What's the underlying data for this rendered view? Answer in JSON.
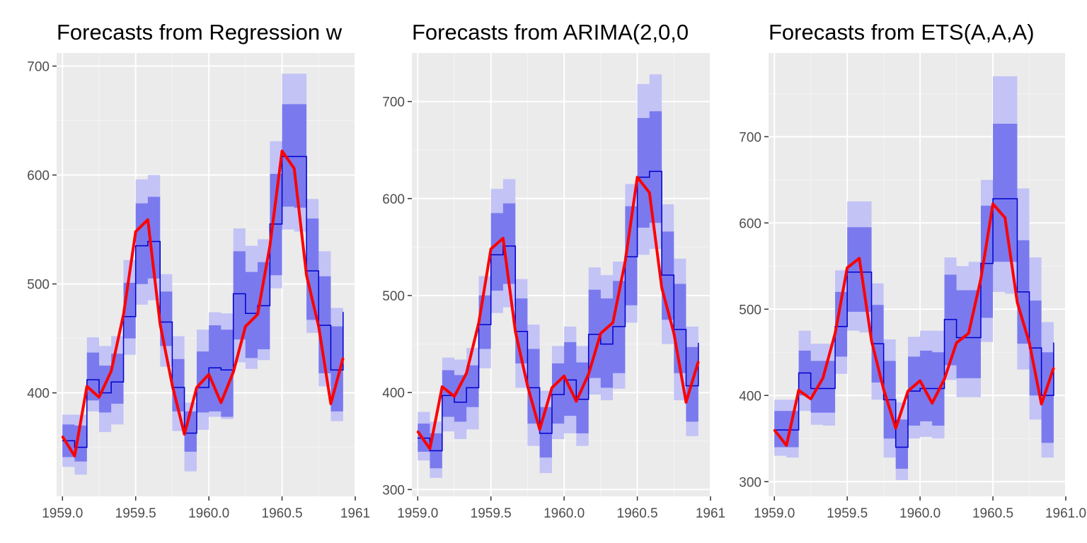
{
  "figure": {
    "colors": {
      "panel_background": "#ebebeb",
      "grid_major": "#ffffff",
      "grid_minor": "#f4f4f4",
      "band_80": "#7a7aee",
      "band_95": "#c3c3f6",
      "forecast_line": "#0000cc",
      "actual_line": "#ff0000",
      "tick_text": "#4d4d4d",
      "tick_mark": "#333333"
    }
  },
  "chart_data": [
    {
      "type": "line",
      "title": "Forecasts from Regression w",
      "xlabel": "",
      "ylabel": "",
      "xlim": [
        1958.96,
        1961.0
      ],
      "ylim": [
        305,
        712
      ],
      "x_ticks": [
        1959.0,
        1959.5,
        1960.0,
        1960.5,
        1961.0
      ],
      "x_tick_labels": [
        "1959.0",
        "1959.5",
        "1960.0",
        "1960.5",
        "1961"
      ],
      "y_ticks": [
        400,
        500,
        600,
        700
      ],
      "y_tick_labels": [
        "400",
        "500",
        "600",
        "700"
      ],
      "grid": true,
      "x": [
        1959.0,
        1959.083,
        1959.167,
        1959.25,
        1959.333,
        1959.417,
        1959.5,
        1959.583,
        1959.667,
        1959.75,
        1959.833,
        1959.917,
        1960.0,
        1960.083,
        1960.167,
        1960.25,
        1960.333,
        1960.417,
        1960.5,
        1960.583,
        1960.667,
        1960.75,
        1960.833,
        1960.917
      ],
      "series": [
        {
          "name": "forecast",
          "values": [
            356,
            350,
            412,
            400,
            410,
            470,
            535,
            539,
            465,
            405,
            363,
            405,
            423,
            421,
            491,
            473,
            480,
            555,
            617,
            617,
            512,
            462,
            421,
            474
          ],
          "lo80": [
            341,
            337,
            393,
            382,
            390,
            450,
            500,
            505,
            443,
            383,
            346,
            382,
            383,
            378,
            449,
            432,
            440,
            508,
            571,
            570,
            467,
            418,
            383,
            437
          ],
          "hi80": [
            371,
            370,
            437,
            425,
            436,
            501,
            574,
            580,
            493,
            431,
            383,
            438,
            462,
            458,
            530,
            511,
            520,
            601,
            665,
            665,
            560,
            507,
            461,
            511
          ],
          "lo95": [
            332,
            325,
            383,
            364,
            371,
            435,
            481,
            485,
            424,
            365,
            328,
            366,
            378,
            376,
            428,
            422,
            430,
            496,
            550,
            548,
            455,
            406,
            374,
            414
          ],
          "hi95": [
            380,
            380,
            451,
            443,
            452,
            522,
            596,
            600,
            509,
            452,
            391,
            458,
            474,
            473,
            551,
            535,
            541,
            631,
            693,
            693,
            578,
            530,
            478,
            532
          ]
        },
        {
          "name": "actual",
          "values": [
            360,
            342,
            406,
            396,
            420,
            472,
            548,
            559,
            463,
            407,
            362,
            405,
            417,
            391,
            419,
            461,
            472,
            535,
            622,
            606,
            508,
            461,
            390,
            432
          ]
        }
      ]
    },
    {
      "type": "line",
      "title": "Forecasts from ARIMA(2,0,0",
      "xlabel": "",
      "ylabel": "",
      "xlim": [
        1958.96,
        1961.0
      ],
      "ylim": [
        293,
        750
      ],
      "x_ticks": [
        1959.0,
        1959.5,
        1960.0,
        1960.5,
        1961.0
      ],
      "x_tick_labels": [
        "1959.0",
        "1959.5",
        "1960.0",
        "1960.5",
        "1961"
      ],
      "y_ticks": [
        300,
        400,
        500,
        600,
        700
      ],
      "y_tick_labels": [
        "300",
        "400",
        "500",
        "600",
        "700"
      ],
      "grid": true,
      "x": [
        1959.0,
        1959.083,
        1959.167,
        1959.25,
        1959.333,
        1959.417,
        1959.5,
        1959.583,
        1959.667,
        1959.75,
        1959.833,
        1959.917,
        1960.0,
        1960.083,
        1960.167,
        1960.25,
        1960.333,
        1960.417,
        1960.5,
        1960.583,
        1960.667,
        1960.75,
        1960.833,
        1960.917
      ],
      "series": [
        {
          "name": "forecast",
          "values": [
            353,
            340,
            397,
            390,
            405,
            470,
            542,
            551,
            463,
            405,
            358,
            398,
            413,
            393,
            460,
            450,
            468,
            540,
            622,
            628,
            521,
            465,
            407,
            451
          ],
          "lo80": [
            339,
            322,
            375,
            370,
            385,
            445,
            505,
            512,
            430,
            368,
            333,
            368,
            376,
            358,
            415,
            405,
            420,
            490,
            570,
            575,
            475,
            420,
            370,
            412
          ],
          "hi80": [
            368,
            358,
            423,
            418,
            428,
            500,
            585,
            595,
            497,
            445,
            385,
            430,
            452,
            431,
            506,
            497,
            515,
            592,
            683,
            690,
            566,
            512,
            447,
            496
          ],
          "lo95": [
            330,
            312,
            360,
            352,
            362,
            425,
            482,
            488,
            405,
            345,
            317,
            352,
            358,
            345,
            398,
            392,
            404,
            472,
            542,
            548,
            450,
            392,
            355,
            388
          ],
          "hi95": [
            380,
            370,
            436,
            434,
            446,
            520,
            610,
            620,
            517,
            470,
            402,
            448,
            468,
            448,
            529,
            521,
            535,
            615,
            718,
            728,
            594,
            538,
            468,
            522
          ]
        },
        {
          "name": "actual",
          "values": [
            360,
            342,
            406,
            396,
            420,
            472,
            548,
            559,
            463,
            407,
            362,
            405,
            417,
            391,
            419,
            461,
            472,
            535,
            622,
            606,
            508,
            461,
            390,
            432
          ]
        }
      ]
    },
    {
      "type": "line",
      "title": "Forecasts from ETS(A,A,A)",
      "xlabel": "",
      "ylabel": "",
      "xlim": [
        1958.96,
        1961.0
      ],
      "ylim": [
        283,
        797
      ],
      "x_ticks": [
        1959.0,
        1959.5,
        1960.0,
        1960.5,
        1961.0
      ],
      "x_tick_labels": [
        "1959.0",
        "1959.5",
        "1960.0",
        "1960.5",
        "1961.0"
      ],
      "y_ticks": [
        300,
        400,
        500,
        600,
        700
      ],
      "y_tick_labels": [
        "300",
        "400",
        "500",
        "600",
        "700"
      ],
      "grid": true,
      "x": [
        1959.0,
        1959.083,
        1959.167,
        1959.25,
        1959.333,
        1959.417,
        1959.5,
        1959.583,
        1959.667,
        1959.75,
        1959.833,
        1959.917,
        1960.0,
        1960.083,
        1960.167,
        1960.25,
        1960.333,
        1960.417,
        1960.5,
        1960.583,
        1960.667,
        1960.75,
        1960.833,
        1960.917
      ],
      "series": [
        {
          "name": "forecast",
          "values": [
            360,
            360,
            426,
            408,
            408,
            480,
            543,
            543,
            460,
            395,
            340,
            405,
            408,
            408,
            488,
            467,
            467,
            553,
            628,
            628,
            520,
            455,
            400,
            461
          ],
          "lo80": [
            340,
            340,
            400,
            380,
            380,
            445,
            497,
            497,
            415,
            350,
            315,
            365,
            370,
            365,
            435,
            420,
            420,
            490,
            555,
            555,
            460,
            400,
            345,
            405
          ],
          "hi80": [
            382,
            382,
            452,
            440,
            440,
            520,
            595,
            595,
            505,
            440,
            372,
            445,
            452,
            450,
            540,
            522,
            522,
            620,
            715,
            715,
            580,
            510,
            450,
            520
          ],
          "lo95": [
            330,
            328,
            382,
            366,
            365,
            425,
            475,
            473,
            395,
            328,
            302,
            350,
            352,
            350,
            418,
            398,
            398,
            462,
            520,
            518,
            430,
            372,
            328,
            385
          ],
          "hi95": [
            395,
            395,
            475,
            460,
            460,
            545,
            625,
            625,
            530,
            465,
            392,
            468,
            475,
            475,
            560,
            550,
            555,
            650,
            770,
            770,
            640,
            560,
            485,
            555
          ]
        },
        {
          "name": "actual",
          "values": [
            360,
            342,
            406,
            396,
            420,
            472,
            548,
            559,
            463,
            407,
            362,
            405,
            417,
            391,
            419,
            461,
            472,
            535,
            622,
            606,
            508,
            461,
            390,
            432
          ]
        }
      ]
    }
  ]
}
